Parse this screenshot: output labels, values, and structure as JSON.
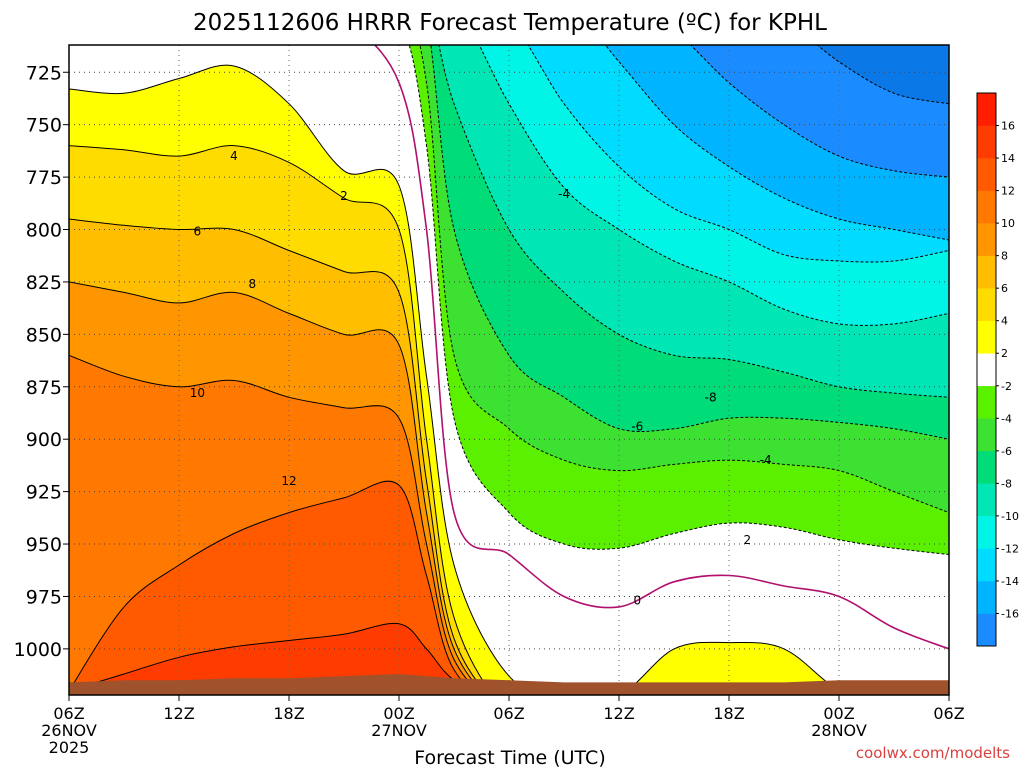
{
  "chart_data": {
    "type": "heatmap",
    "title": "2025112606 HRRR Forecast Temperature (ºC) for KPHL",
    "xlabel": "Forecast Time (UTC)",
    "ylabel": "",
    "x_range_hours": [
      0,
      48
    ],
    "y_range_hpa": [
      712,
      1022
    ],
    "y_ticks": [
      725,
      750,
      775,
      800,
      825,
      850,
      875,
      900,
      925,
      950,
      975,
      1000
    ],
    "x_ticks": [
      {
        "hour": 0,
        "label": "06Z",
        "sub1": "26NOV",
        "sub2": "2025"
      },
      {
        "hour": 6,
        "label": "12Z",
        "sub1": "",
        "sub2": ""
      },
      {
        "hour": 12,
        "label": "18Z",
        "sub1": "",
        "sub2": ""
      },
      {
        "hour": 18,
        "label": "00Z",
        "sub1": "27NOV",
        "sub2": ""
      },
      {
        "hour": 24,
        "label": "06Z",
        "sub1": "",
        "sub2": ""
      },
      {
        "hour": 30,
        "label": "12Z",
        "sub1": "",
        "sub2": ""
      },
      {
        "hour": 36,
        "label": "18Z",
        "sub1": "",
        "sub2": ""
      },
      {
        "hour": 42,
        "label": "00Z",
        "sub1": "28NOV",
        "sub2": ""
      },
      {
        "hour": 48,
        "label": "06Z",
        "sub1": "",
        "sub2": ""
      }
    ],
    "grid": true,
    "hours": [
      0,
      3,
      6,
      9,
      12,
      15,
      18,
      19.5,
      21,
      24,
      27,
      30,
      33,
      36,
      39,
      42,
      45,
      48
    ],
    "isotherms": [
      {
        "value": 14,
        "p": [
          1020,
          1012,
          1004,
          999,
          996,
          993,
          988,
          1000,
          1015,
          1030,
          1030,
          1030,
          1030,
          1030,
          1030,
          1030,
          1030,
          1030
        ]
      },
      {
        "value": 12,
        "p": [
          1020,
          980,
          960,
          945,
          935,
          928,
          922,
          965,
          1010,
          1030,
          1030,
          1030,
          1030,
          1030,
          1030,
          1030,
          1030,
          1030
        ]
      },
      {
        "value": 10,
        "p": [
          860,
          870,
          875,
          872,
          880,
          885,
          890,
          950,
          1005,
          1030,
          1030,
          1030,
          1030,
          1030,
          1030,
          1030,
          1030,
          1030
        ]
      },
      {
        "value": 8,
        "p": [
          825,
          830,
          835,
          830,
          840,
          850,
          855,
          935,
          1000,
          1030,
          1030,
          1030,
          1030,
          1030,
          1030,
          1030,
          1030,
          1030
        ]
      },
      {
        "value": 6,
        "p": [
          795,
          798,
          800,
          800,
          810,
          820,
          830,
          920,
          995,
          1030,
          1030,
          1030,
          1030,
          1030,
          1030,
          1030,
          1030,
          1030
        ]
      },
      {
        "value": 4,
        "p": [
          760,
          762,
          765,
          760,
          768,
          785,
          800,
          900,
          985,
          1030,
          1030,
          1030,
          1030,
          1030,
          1030,
          1030,
          1030,
          1030
        ]
      },
      {
        "value": 2,
        "p": [
          733,
          735,
          728,
          722,
          740,
          772,
          779,
          870,
          960,
          1013,
          1020,
          1022,
          1000,
          997,
          1000,
          1020,
          1030,
          1030
        ]
      },
      {
        "value": 0,
        "p": [
          690,
          690,
          690,
          690,
          690,
          700,
          730,
          800,
          935,
          955,
          975,
          980,
          968,
          965,
          970,
          975,
          990,
          1000
        ]
      },
      {
        "value": -2,
        "p": [
          690,
          690,
          690,
          690,
          690,
          690,
          700,
          760,
          890,
          935,
          950,
          952,
          945,
          940,
          942,
          948,
          952,
          955
        ]
      },
      {
        "value": -4,
        "p": [
          690,
          690,
          690,
          690,
          690,
          690,
          690,
          730,
          860,
          895,
          910,
          915,
          912,
          910,
          912,
          915,
          925,
          935
        ]
      },
      {
        "value": -6,
        "p": [
          690,
          690,
          690,
          690,
          690,
          690,
          690,
          700,
          800,
          860,
          880,
          895,
          895,
          890,
          890,
          892,
          895,
          900
        ]
      },
      {
        "value": -8,
        "p": [
          690,
          690,
          690,
          690,
          690,
          690,
          690,
          690,
          740,
          800,
          830,
          850,
          860,
          862,
          868,
          875,
          878,
          880
        ]
      },
      {
        "value": -10,
        "p": [
          690,
          690,
          690,
          690,
          690,
          690,
          690,
          690,
          690,
          740,
          780,
          800,
          815,
          825,
          838,
          845,
          845,
          840
        ]
      },
      {
        "value": -12,
        "p": [
          690,
          690,
          690,
          690,
          690,
          690,
          690,
          690,
          690,
          700,
          740,
          770,
          790,
          800,
          812,
          815,
          815,
          810
        ]
      },
      {
        "value": -14,
        "p": [
          690,
          690,
          690,
          690,
          690,
          690,
          690,
          690,
          690,
          690,
          690,
          720,
          750,
          770,
          785,
          795,
          800,
          805
        ]
      },
      {
        "value": -16,
        "p": [
          690,
          690,
          690,
          690,
          690,
          690,
          690,
          690,
          690,
          690,
          690,
          690,
          705,
          730,
          750,
          765,
          772,
          775
        ]
      },
      {
        "value": -18,
        "p": [
          690,
          690,
          690,
          690,
          690,
          690,
          690,
          690,
          690,
          690,
          690,
          690,
          690,
          690,
          700,
          720,
          735,
          740
        ]
      }
    ],
    "contour_labels": [
      {
        "text": "4",
        "hour": 9.0,
        "p": 765
      },
      {
        "text": "2",
        "hour": 15.0,
        "p": 784
      },
      {
        "text": "6",
        "hour": 7.0,
        "p": 801
      },
      {
        "text": "8",
        "hour": 10.0,
        "p": 826
      },
      {
        "text": "10",
        "hour": 7.0,
        "p": 878
      },
      {
        "text": "12",
        "hour": 12.0,
        "p": 920
      },
      {
        "text": "-4",
        "hour": 27.0,
        "p": 783
      },
      {
        "text": "-8",
        "hour": 35.0,
        "p": 880
      },
      {
        "text": "-6",
        "hour": 31.0,
        "p": 894
      },
      {
        "text": "-4",
        "hour": 38.0,
        "p": 910
      },
      {
        "text": "2",
        "hour": 37.0,
        "p": 948
      },
      {
        "text": "0",
        "hour": 31.0,
        "p": 977
      }
    ],
    "surface_hpa": [
      1016,
      1015,
      1015,
      1014,
      1014,
      1013,
      1012,
      1013,
      1014,
      1015,
      1016,
      1016,
      1016,
      1016,
      1016,
      1015,
      1015,
      1015
    ],
    "colorbar": {
      "levels": [
        -18,
        -16,
        -14,
        -12,
        -10,
        -8,
        -6,
        -4,
        -2,
        2,
        4,
        6,
        8,
        10,
        12,
        14,
        16,
        18
      ],
      "labels": [
        "-16",
        "-14",
        "-12",
        "-10",
        "-8",
        "-6",
        "-4",
        "-2",
        "2",
        "4",
        "6",
        "8",
        "10",
        "12",
        "14",
        "16"
      ],
      "colors": [
        "#1a8cff",
        "#00b4ff",
        "#00dcff",
        "#00f5e6",
        "#00e6b4",
        "#00dc78",
        "#3ce132",
        "#5af000",
        "#ffffff",
        "#ffff00",
        "#ffdc00",
        "#ffbe00",
        "#ff9600",
        "#ff7800",
        "#ff5a00",
        "#ff3c00",
        "#ff1e00"
      ]
    },
    "ground_color": "#a0522d"
  },
  "credit": "coolwx.com/modelts"
}
